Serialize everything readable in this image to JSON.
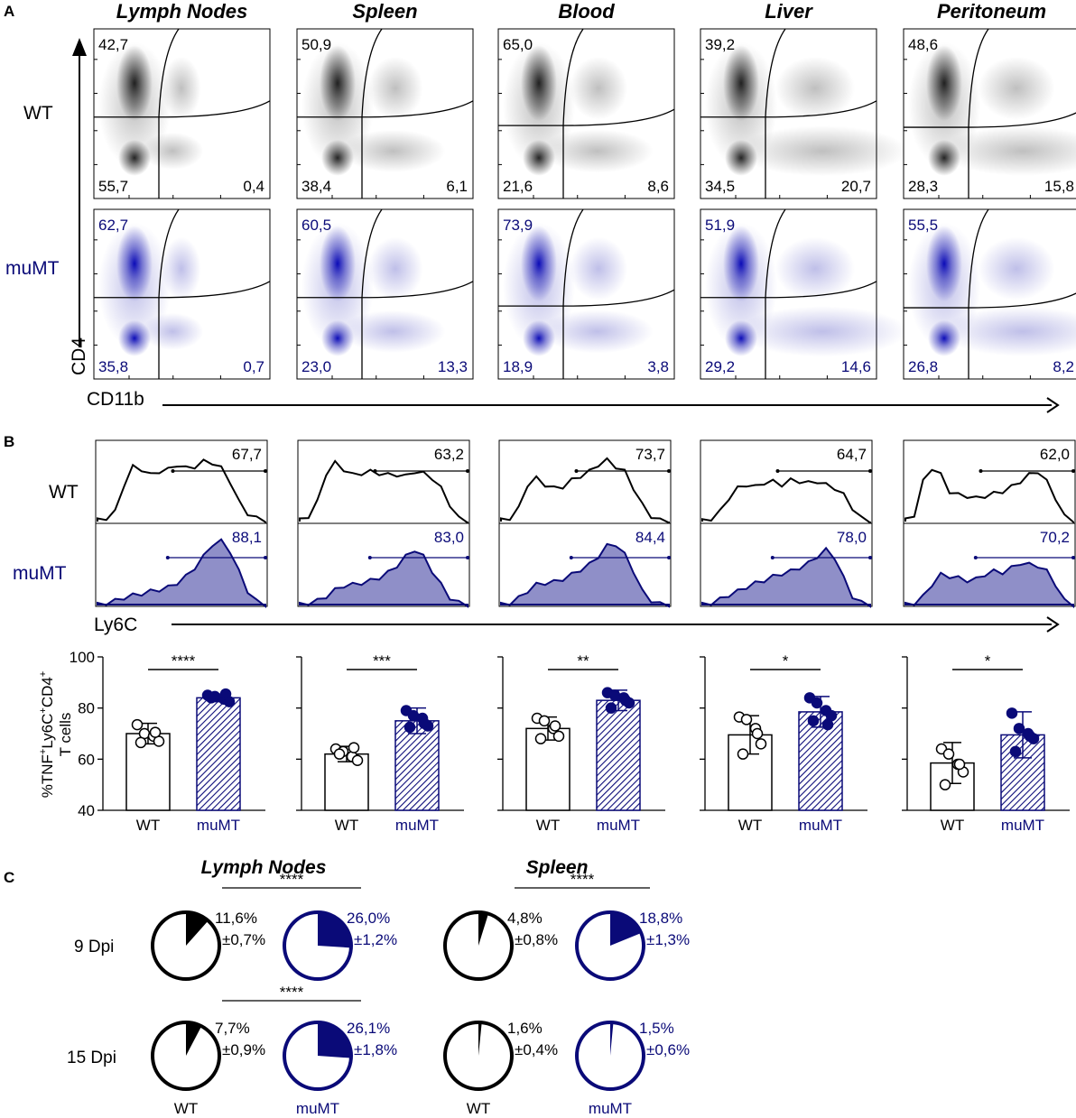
{
  "colors": {
    "wt": "#000000",
    "mumt": "#0a0a78",
    "mumt_fill": "#8f8fc8",
    "grey": "#3a3a3a"
  },
  "panel_labels": {
    "a": "A",
    "b": "B",
    "c": "C"
  },
  "tissues": [
    "Lymph Nodes",
    "Spleen",
    "Blood",
    "Liver",
    "Peritoneum"
  ],
  "groups": {
    "wt": "WT",
    "mumt": "muMT"
  },
  "axes": {
    "cd4": "CD4",
    "cd11b": "CD11b",
    "ly6c": "Ly6C",
    "bar_y_line1": "%TNF",
    "bar_y_sup1": "+",
    "bar_y_mid1": "Ly6C",
    "bar_y_sup2": "+",
    "bar_y_mid2": "CD4",
    "bar_y_sup3": "+",
    "bar_y_line2": "T cells"
  },
  "panel_a": {
    "wt": [
      {
        "ul": "42,7",
        "ll": "55,7",
        "lr": "0,4"
      },
      {
        "ul": "50,9",
        "ll": "38,4",
        "lr": "6,1"
      },
      {
        "ul": "65,0",
        "ll": "21,6",
        "lr": "8,6"
      },
      {
        "ul": "39,2",
        "ll": "34,5",
        "lr": "20,7"
      },
      {
        "ul": "48,6",
        "ll": "28,3",
        "lr": "15,8"
      }
    ],
    "mumt": [
      {
        "ul": "62,7",
        "ll": "35,8",
        "lr": "0,7"
      },
      {
        "ul": "60,5",
        "ll": "23,0",
        "lr": "13,3"
      },
      {
        "ul": "73,9",
        "ll": "18,9",
        "lr": "3,8"
      },
      {
        "ul": "51,9",
        "ll": "29,2",
        "lr": "14,6"
      },
      {
        "ul": "55,5",
        "ll": "26,8",
        "lr": "8,2"
      }
    ]
  },
  "panel_b_hist": {
    "wt": [
      "67,7",
      "63,2",
      "73,7",
      "64,7",
      "62,0"
    ],
    "mumt": [
      "88,1",
      "83,0",
      "84,4",
      "78,0",
      "70,2"
    ]
  },
  "chart_data": {
    "type": "bar",
    "title": "",
    "ylabel": "%TNF+Ly6C+CD4+ T cells",
    "ylim": [
      40,
      100
    ],
    "yticks": [
      "40",
      "60",
      "80",
      "100"
    ],
    "categories": [
      "WT",
      "muMT"
    ],
    "panels": [
      {
        "tissue": "Lymph Nodes",
        "wt": {
          "mean": 70,
          "sd": 4,
          "points": [
            73.5,
            70,
            69,
            67,
            66.5,
            70.5
          ]
        },
        "mumt": {
          "mean": 84,
          "sd": 1.5,
          "points": [
            85,
            84.5,
            83.5,
            82.5,
            84,
            85.5
          ]
        },
        "sig": "****"
      },
      {
        "tissue": "Spleen",
        "wt": {
          "mean": 62,
          "sd": 3,
          "points": [
            64,
            63,
            61,
            59.5,
            62,
            64.5
          ]
        },
        "mumt": {
          "mean": 75,
          "sd": 5,
          "points": [
            79,
            77,
            76,
            73,
            72.5,
            74
          ]
        },
        "sig": "***"
      },
      {
        "tissue": "Blood",
        "wt": {
          "mean": 72,
          "sd": 4.5,
          "points": [
            76,
            75,
            72,
            69,
            68,
            73
          ]
        },
        "mumt": {
          "mean": 83,
          "sd": 4,
          "points": [
            86,
            85,
            84,
            82,
            80,
            83
          ]
        },
        "sig": "**"
      },
      {
        "tissue": "Liver",
        "wt": {
          "mean": 69.5,
          "sd": 7.5,
          "points": [
            76.5,
            75.5,
            72,
            66,
            62,
            70
          ]
        },
        "mumt": {
          "mean": 78.5,
          "sd": 6,
          "points": [
            84,
            82,
            79,
            77,
            75,
            73.5
          ]
        },
        "sig": "*"
      },
      {
        "tissue": "Peritoneum",
        "wt": {
          "mean": 58.5,
          "sd": 8,
          "points": [
            64,
            62,
            58,
            55,
            50,
            58
          ]
        },
        "mumt": {
          "mean": 69.5,
          "sd": 9,
          "points": [
            78,
            72,
            70,
            68,
            63,
            69
          ]
        },
        "sig": "*"
      }
    ]
  },
  "panel_c": {
    "tissue_titles": [
      "Lymph Nodes",
      "Spleen"
    ],
    "row_labels": [
      "9 Dpi",
      "15 Dpi"
    ],
    "pies": [
      {
        "tissue": "Lymph Nodes",
        "day": "9 Dpi",
        "group": "WT",
        "fraction": 0.116,
        "pct": "11,6%",
        "sd": "±0,7%"
      },
      {
        "tissue": "Lymph Nodes",
        "day": "9 Dpi",
        "group": "muMT",
        "fraction": 0.26,
        "pct": "26,0%",
        "sd": "±1,2%"
      },
      {
        "tissue": "Spleen",
        "day": "9 Dpi",
        "group": "WT",
        "fraction": 0.048,
        "pct": "4,8%",
        "sd": "±0,8%"
      },
      {
        "tissue": "Spleen",
        "day": "9 Dpi",
        "group": "muMT",
        "fraction": 0.188,
        "pct": "18,8%",
        "sd": "±1,3%"
      },
      {
        "tissue": "Lymph Nodes",
        "day": "15 Dpi",
        "group": "WT",
        "fraction": 0.077,
        "pct": "7,7%",
        "sd": "±0,9%"
      },
      {
        "tissue": "Lymph Nodes",
        "day": "15 Dpi",
        "group": "muMT",
        "fraction": 0.261,
        "pct": "26,1%",
        "sd": "±1,8%"
      },
      {
        "tissue": "Spleen",
        "day": "15 Dpi",
        "group": "WT",
        "fraction": 0.016,
        "pct": "1,6%",
        "sd": "±0,4%"
      },
      {
        "tissue": "Spleen",
        "day": "15 Dpi",
        "group": "muMT",
        "fraction": 0.015,
        "pct": "1,5%",
        "sd": "±0,6%"
      }
    ],
    "sig": [
      "****",
      "****",
      "****"
    ]
  }
}
